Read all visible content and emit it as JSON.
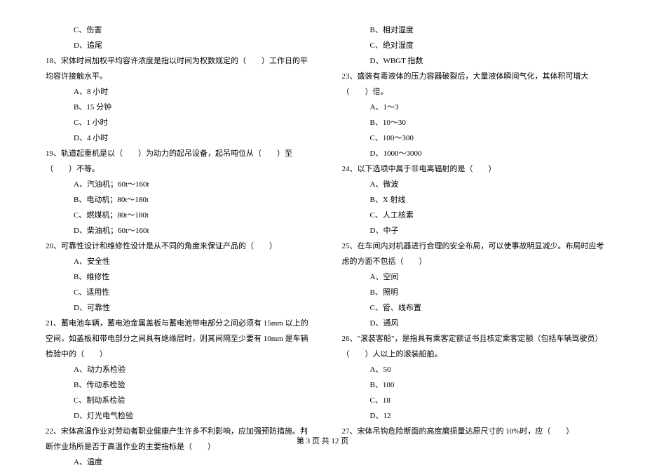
{
  "left": {
    "opt_c_17": "C、伤害",
    "opt_d_17": "D、追尾",
    "q18": "18、宋体时间加权平均容许浓度是指以时间为权数规定的（　　）工作日的平均容许接触水平。",
    "opt_a_18": "A、8 小时",
    "opt_b_18": "B、15 分钟",
    "opt_c_18": "C、1 小时",
    "opt_d_18": "D、4 小时",
    "q19": "19、轨道起重机是以（　　）为动力的起吊设备，起吊吨位从（　　）至（　　）不等。",
    "opt_a_19": "A、汽油机；60t～160t",
    "opt_b_19": "B、电动机；80t～180t",
    "opt_c_19": "C、燃煤机；80t～180t",
    "opt_d_19": "D、柴油机；60t～160t",
    "q20": "20、可靠性设计和维修性设计是从不同的角度来保证产品的（　　）",
    "opt_a_20": "A、安全性",
    "opt_b_20": "B、维修性",
    "opt_c_20": "C、适用性",
    "opt_d_20": "D、可靠性",
    "q21": "21、蓄电池车辆，蓄电池金属盖板与蓄电池带电部分之间必须有 15mm 以上的空间，如盖板和带电部分之间具有绝缘层时，则其间隔至少要有 10mm 是车辆检验中的（　　）",
    "opt_a_21": "A、动力系检验",
    "opt_b_21": "B、传动系检验",
    "opt_c_21": "C、制动系检验",
    "opt_d_21": "D、灯光电气检验",
    "q22": "22、宋体高温作业对劳动者职业健康产生许多不利影响，应加强预防措施。判断作业场所是否于高温作业的主要指标是（　　）",
    "opt_a_22": "A、温度"
  },
  "right": {
    "opt_b_22": "B、相对湿度",
    "opt_c_22": "C、绝对湿度",
    "opt_d_22": "D、WBGT 指数",
    "q23": "23、盛装有毒液体的压力容器破裂后，大量液体瞬间气化，其体积可增大（　　）倍。",
    "opt_a_23": "A、1～3",
    "opt_b_23": "B、10～30",
    "opt_c_23": "C、100～300",
    "opt_d_23": "D、1000～3000",
    "q24": "24、以下选项中属于非电离辐射的是（　　）",
    "opt_a_24": "A、微波",
    "opt_b_24": "B、X 射线",
    "opt_c_24": "C、人工核素",
    "opt_d_24": "D、中子",
    "q25": "25、在车间内对机器进行合理的安全布局，可以使事故明显减少。布局时应考虑的方面不包括（　　）",
    "opt_a_25": "A、空间",
    "opt_b_25": "B、照明",
    "opt_c_25": "C、管、线布置",
    "opt_d_25": "D、通风",
    "q26": "26、\"滚装客船\"，是指具有乘客定额证书且核定乘客定额（包括车辆驾驶员）（　　）人以上的滚装船舶。",
    "opt_a_26": "A、50",
    "opt_b_26": "B、100",
    "opt_c_26": "C、18",
    "opt_d_26": "D、12",
    "q27": "27、宋体吊钩危险断面的高度磨损量达原尺寸的 10%时，应（　　）"
  },
  "footer": "第 3 页 共 12 页"
}
